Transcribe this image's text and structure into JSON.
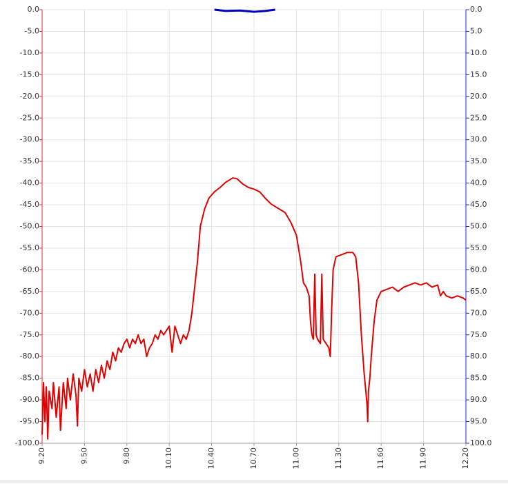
{
  "chart_data": {
    "type": "line",
    "grid": true,
    "xlim": [
      9.2,
      12.2
    ],
    "xticks": [
      {
        "value": 9.2,
        "label": "9.20"
      },
      {
        "value": 9.5,
        "label": "9.50"
      },
      {
        "value": 9.8,
        "label": "9.80"
      },
      {
        "value": 10.1,
        "label": "10.10"
      },
      {
        "value": 10.4,
        "label": "10.40"
      },
      {
        "value": 10.7,
        "label": "10.70"
      },
      {
        "value": 11,
        "label": "11.00"
      },
      {
        "value": 11.3,
        "label": "11.30"
      },
      {
        "value": 11.6,
        "label": "11.60"
      },
      {
        "value": 11.9,
        "label": "11.90"
      },
      {
        "value": 12.2,
        "label": "12.20"
      }
    ],
    "ylim": [
      -100,
      0
    ],
    "yticks": [
      {
        "value": 0,
        "label": "0.0"
      },
      {
        "value": -5,
        "label": "-5.0"
      },
      {
        "value": -10,
        "label": "-10.0"
      },
      {
        "value": -15,
        "label": "-15.0"
      },
      {
        "value": -20,
        "label": "-20.0"
      },
      {
        "value": -25,
        "label": "-25.0"
      },
      {
        "value": -30,
        "label": "-30.0"
      },
      {
        "value": -35,
        "label": "-35.0"
      },
      {
        "value": -40,
        "label": "-40.0"
      },
      {
        "value": -45,
        "label": "-45.0"
      },
      {
        "value": -50,
        "label": "-50.0"
      },
      {
        "value": -55,
        "label": "-55.0"
      },
      {
        "value": -60,
        "label": "-60.0"
      },
      {
        "value": -65,
        "label": "-65.0"
      },
      {
        "value": -70,
        "label": "-70.0"
      },
      {
        "value": -75,
        "label": "-75.0"
      },
      {
        "value": -80,
        "label": "-80.0"
      },
      {
        "value": -85,
        "label": "-85.0"
      },
      {
        "value": -90,
        "label": "-90.0"
      },
      {
        "value": -95,
        "label": "-95.0"
      },
      {
        "value": -100,
        "label": "-100.0"
      }
    ],
    "y2lim": [
      100,
      0
    ],
    "y2ticks": [
      {
        "value": 0,
        "label": "0.0"
      },
      {
        "value": 5,
        "label": "5.0"
      },
      {
        "value": 10,
        "label": "10.0"
      },
      {
        "value": 15,
        "label": "15.0"
      },
      {
        "value": 20,
        "label": "20.0"
      },
      {
        "value": 25,
        "label": "25.0"
      },
      {
        "value": 30,
        "label": "30.0"
      },
      {
        "value": 35,
        "label": "35.0"
      },
      {
        "value": 40,
        "label": "40.0"
      },
      {
        "value": 45,
        "label": "45.0"
      },
      {
        "value": 50,
        "label": "50.0"
      },
      {
        "value": 55,
        "label": "55.0"
      },
      {
        "value": 60,
        "label": "60.0"
      },
      {
        "value": 65,
        "label": "65.0"
      },
      {
        "value": 70,
        "label": "70.0"
      },
      {
        "value": 75,
        "label": "75.0"
      },
      {
        "value": 80,
        "label": "80.0"
      },
      {
        "value": 85,
        "label": "85.0"
      },
      {
        "value": 90,
        "label": "90.0"
      },
      {
        "value": 95,
        "label": "95.0"
      },
      {
        "value": 100,
        "label": "100.0"
      }
    ],
    "y_axis_color": "#e03030",
    "y2_axis_color": "#2020d0",
    "series": [
      {
        "color": "#e00000",
        "x": [
          9.2,
          9.21,
          9.22,
          9.23,
          9.24,
          9.25,
          9.27,
          9.28,
          9.3,
          9.32,
          9.33,
          9.35,
          9.37,
          9.38,
          9.4,
          9.42,
          9.44,
          9.45,
          9.46,
          9.48,
          9.5,
          9.52,
          9.54,
          9.56,
          9.58,
          9.6,
          9.62,
          9.64,
          9.66,
          9.68,
          9.7,
          9.72,
          9.74,
          9.76,
          9.78,
          9.8,
          9.82,
          9.84,
          9.86,
          9.88,
          9.9,
          9.92,
          9.94,
          9.96,
          9.98,
          10,
          10.02,
          10.04,
          10.06,
          10.08,
          10.1,
          10.12,
          10.14,
          10.16,
          10.18,
          10.2,
          10.22,
          10.24,
          10.26,
          10.28,
          10.3,
          10.32,
          10.35,
          10.38,
          10.42,
          10.46,
          10.5,
          10.55,
          10.58,
          10.62,
          10.66,
          10.7,
          10.74,
          10.78,
          10.82,
          10.88,
          10.92,
          10.96,
          11,
          11.03,
          11.05,
          11.07,
          11.09,
          11.1,
          11.11,
          11.12,
          11.13,
          11.14,
          11.15,
          11.17,
          11.18,
          11.19,
          11.21,
          11.23,
          11.24,
          11.25,
          11.26,
          11.28,
          11.32,
          11.36,
          11.4,
          11.42,
          11.44,
          11.46,
          11.48,
          11.5,
          11.505,
          11.51,
          11.52,
          11.53,
          11.55,
          11.57,
          11.6,
          11.64,
          11.68,
          11.72,
          11.76,
          11.8,
          11.84,
          11.88,
          11.92,
          11.96,
          12,
          12.02,
          12.04,
          12.06,
          12.1,
          12.14,
          12.18,
          12.2
        ],
        "values": [
          -98,
          -86,
          -95,
          -87,
          -99,
          -88,
          -92,
          -86,
          -94,
          -87,
          -97,
          -86,
          -92,
          -85,
          -90,
          -84,
          -89,
          -96,
          -85,
          -88,
          -83,
          -87,
          -84,
          -88,
          -83,
          -86,
          -82,
          -85,
          -81,
          -83,
          -79,
          -81,
          -78,
          -79,
          -77,
          -76,
          -78,
          -76,
          -77,
          -75,
          -77,
          -76,
          -80,
          -78,
          -77,
          -75,
          -76,
          -74,
          -75,
          -74,
          -73,
          -79,
          -73,
          -75,
          -77,
          -75,
          -76,
          -74,
          -70,
          -64,
          -58,
          -50,
          -46,
          -43.5,
          -42,
          -41,
          -39.8,
          -38.8,
          -39,
          -40.2,
          -41,
          -41.4,
          -42,
          -43.5,
          -44.8,
          -46,
          -46.8,
          -49,
          -52,
          -58,
          -63,
          -64,
          -66,
          -72,
          -75,
          -76,
          -61,
          -75,
          -76,
          -77,
          -61,
          -76,
          -77,
          -78,
          -80,
          -69,
          -60,
          -57,
          -56.5,
          -56,
          -56,
          -57,
          -63,
          -75,
          -84,
          -91,
          -95,
          -88,
          -85,
          -80,
          -72,
          -67,
          -65,
          -64.5,
          -64,
          -65,
          -64,
          -63.5,
          -63,
          -63.5,
          -63,
          -64,
          -63.5,
          -66,
          -65,
          -66,
          -66.5,
          -66,
          -66.5,
          -67
        ]
      },
      {
        "color": "#0000c0",
        "axis": "y2",
        "x": [
          10.42,
          10.5,
          10.6,
          10.7,
          10.78,
          10.85
        ],
        "values": [
          0,
          0.3,
          0.2,
          0.5,
          0.3,
          0
        ]
      }
    ]
  }
}
